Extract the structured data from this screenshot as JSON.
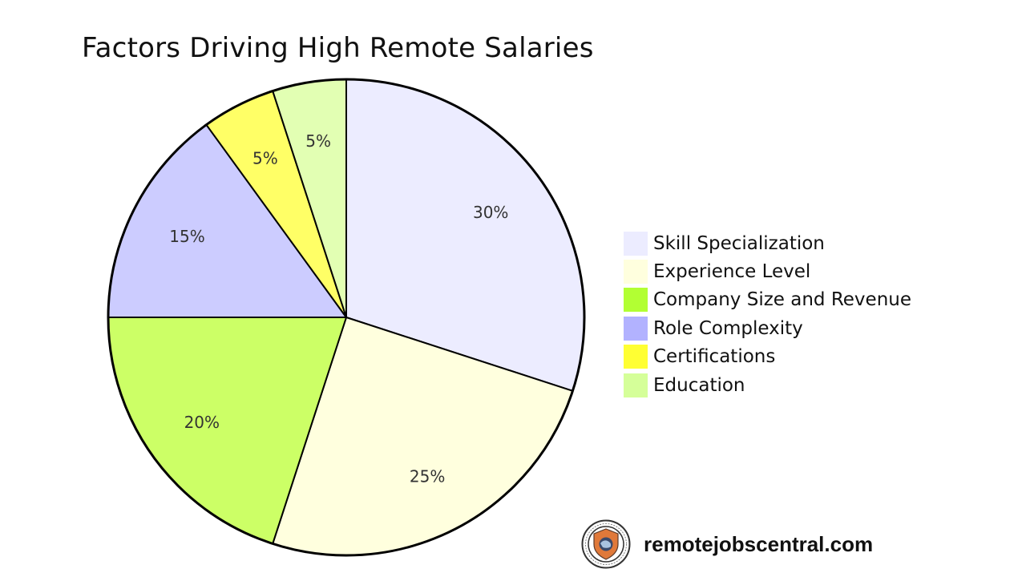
{
  "chart_data": {
    "type": "pie",
    "title": "Factors Driving High Remote Salaries",
    "categories": [
      "Skill Specialization",
      "Experience Level",
      "Company Size and Revenue",
      "Role Complexity",
      "Certifications",
      "Education"
    ],
    "values": [
      30,
      25,
      20,
      15,
      5,
      5
    ],
    "labels": [
      "30%",
      "25%",
      "20%",
      "15%",
      "5%",
      "5%"
    ],
    "colors": [
      "#ececff",
      "#ffffde",
      "#ccff66",
      "#ccccff",
      "#ffff66",
      "#e2ffb3"
    ],
    "legend_colors": [
      "#ececff",
      "#ffffde",
      "#b2ff33",
      "#b2b2ff",
      "#ffff33",
      "#d5ff99"
    ],
    "legend_position": "right"
  },
  "watermark": {
    "site": "remotejobscentral.com",
    "logo_text": "REMOTE JOBS CENTRAL · WORK FROM ANYWHERE"
  }
}
